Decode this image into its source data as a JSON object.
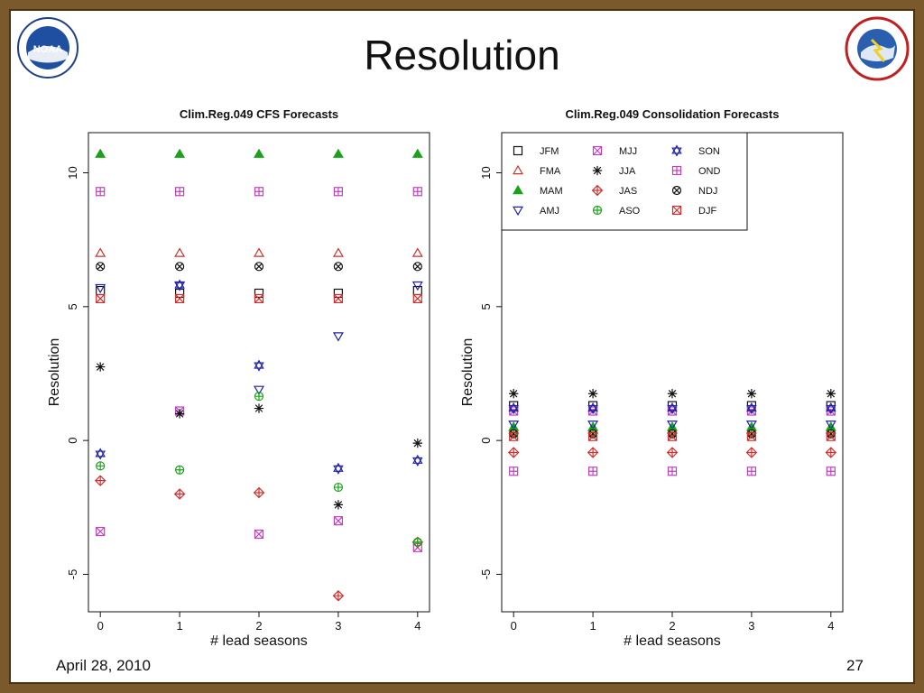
{
  "slide": {
    "title": "Resolution",
    "date": "April 28, 2010",
    "page": "27"
  },
  "logos": {
    "left": {
      "icon": "noaa-logo-icon",
      "text": "NOAA"
    },
    "right": {
      "icon": "nws-logo-icon"
    }
  },
  "colors": {
    "black": "#111111",
    "red": "#d03030",
    "green": "#1aa31a",
    "blue": "#2020b0",
    "magenta": "#c040c0"
  },
  "chart_data": [
    {
      "type": "scatter",
      "title": "Clim.Reg.049  CFS Forecasts",
      "xlabel": "# lead seasons",
      "ylabel": "Resolution",
      "x": [
        0,
        1,
        2,
        3,
        4
      ],
      "xlim": [
        -0.15,
        4.15
      ],
      "ylim": [
        -6.4,
        11.5
      ],
      "yticks": [
        -5,
        0,
        5,
        10
      ],
      "grid": false,
      "series": [
        {
          "name": "JFM",
          "marker": "square",
          "color": "#111111",
          "values": [
            5.6,
            5.5,
            5.5,
            5.5,
            5.6
          ]
        },
        {
          "name": "FMA",
          "marker": "triangle-up",
          "color": "#d03030",
          "values": [
            7.0,
            7.0,
            7.0,
            7.0,
            7.0
          ]
        },
        {
          "name": "MAM",
          "marker": "triangle-up-filled",
          "color": "#1aa31a",
          "values": [
            10.7,
            10.7,
            10.7,
            10.7,
            10.7
          ]
        },
        {
          "name": "AMJ",
          "marker": "triangle-down",
          "color": "#2020b0",
          "values": [
            5.7,
            5.8,
            1.9,
            3.9,
            5.8
          ]
        },
        {
          "name": "MJJ",
          "marker": "square-x",
          "color": "#c040c0",
          "values": [
            -3.4,
            1.1,
            -3.5,
            -3.0,
            -4.0
          ]
        },
        {
          "name": "JJA",
          "marker": "asterisk",
          "color": "#111111",
          "values": [
            2.75,
            1.0,
            1.2,
            -2.4,
            -0.1
          ]
        },
        {
          "name": "JAS",
          "marker": "diamond-plus",
          "color": "#d03030",
          "values": [
            -1.5,
            -2.0,
            -1.95,
            -5.8,
            -3.8
          ]
        },
        {
          "name": "ASO",
          "marker": "circle-plus",
          "color": "#1aa31a",
          "values": [
            -0.95,
            -1.1,
            1.65,
            -1.75,
            -3.8
          ]
        },
        {
          "name": "SON",
          "marker": "hexagram",
          "color": "#2020b0",
          "values": [
            -0.5,
            5.8,
            2.8,
            -1.05,
            -0.75
          ]
        },
        {
          "name": "OND",
          "marker": "square-plus",
          "color": "#c040c0",
          "values": [
            9.3,
            9.3,
            9.3,
            9.3,
            9.3
          ]
        },
        {
          "name": "NDJ",
          "marker": "circle-x",
          "color": "#111111",
          "values": [
            6.5,
            6.5,
            6.5,
            6.5,
            6.5
          ]
        },
        {
          "name": "DJF",
          "marker": "square-x",
          "color": "#d03030",
          "values": [
            5.3,
            5.3,
            5.3,
            5.3,
            5.3
          ]
        }
      ]
    },
    {
      "type": "scatter",
      "title": "Clim.Reg.049  Consolidation Forecasts",
      "xlabel": "# lead seasons",
      "ylabel": "Resolution",
      "x": [
        0,
        1,
        2,
        3,
        4
      ],
      "xlim": [
        -0.15,
        4.15
      ],
      "ylim": [
        -6.4,
        11.5
      ],
      "yticks": [
        -5,
        0,
        5,
        10
      ],
      "grid": false,
      "legend": "top-left",
      "series": [
        {
          "name": "JFM",
          "marker": "square",
          "color": "#111111",
          "values": [
            1.3,
            1.3,
            1.3,
            1.3,
            1.3
          ]
        },
        {
          "name": "FMA",
          "marker": "triangle-up",
          "color": "#d03030",
          "values": [
            0.4,
            0.4,
            0.4,
            0.4,
            0.4
          ]
        },
        {
          "name": "MAM",
          "marker": "triangle-up-filled",
          "color": "#1aa31a",
          "values": [
            0.5,
            0.5,
            0.5,
            0.5,
            0.5
          ]
        },
        {
          "name": "AMJ",
          "marker": "triangle-down",
          "color": "#2020b0",
          "values": [
            0.6,
            0.6,
            0.6,
            0.6,
            0.6
          ]
        },
        {
          "name": "MJJ",
          "marker": "square-x",
          "color": "#c040c0",
          "values": [
            1.1,
            1.1,
            1.1,
            1.1,
            1.1
          ]
        },
        {
          "name": "JJA",
          "marker": "asterisk",
          "color": "#111111",
          "values": [
            1.75,
            1.75,
            1.75,
            1.75,
            1.75
          ]
        },
        {
          "name": "JAS",
          "marker": "diamond-plus",
          "color": "#d03030",
          "values": [
            -0.45,
            -0.45,
            -0.45,
            -0.45,
            -0.45
          ]
        },
        {
          "name": "ASO",
          "marker": "circle-plus",
          "color": "#1aa31a",
          "values": [
            0.3,
            0.3,
            0.3,
            0.3,
            0.3
          ]
        },
        {
          "name": "SON",
          "marker": "hexagram",
          "color": "#2020b0",
          "values": [
            1.2,
            1.2,
            1.2,
            1.2,
            1.2
          ]
        },
        {
          "name": "OND",
          "marker": "square-plus",
          "color": "#c040c0",
          "values": [
            -1.15,
            -1.15,
            -1.15,
            -1.15,
            -1.15
          ]
        },
        {
          "name": "NDJ",
          "marker": "circle-x",
          "color": "#111111",
          "values": [
            0.25,
            0.25,
            0.25,
            0.25,
            0.25
          ]
        },
        {
          "name": "DJF",
          "marker": "square-x",
          "color": "#d03030",
          "values": [
            0.15,
            0.15,
            0.15,
            0.15,
            0.15
          ]
        }
      ]
    }
  ]
}
